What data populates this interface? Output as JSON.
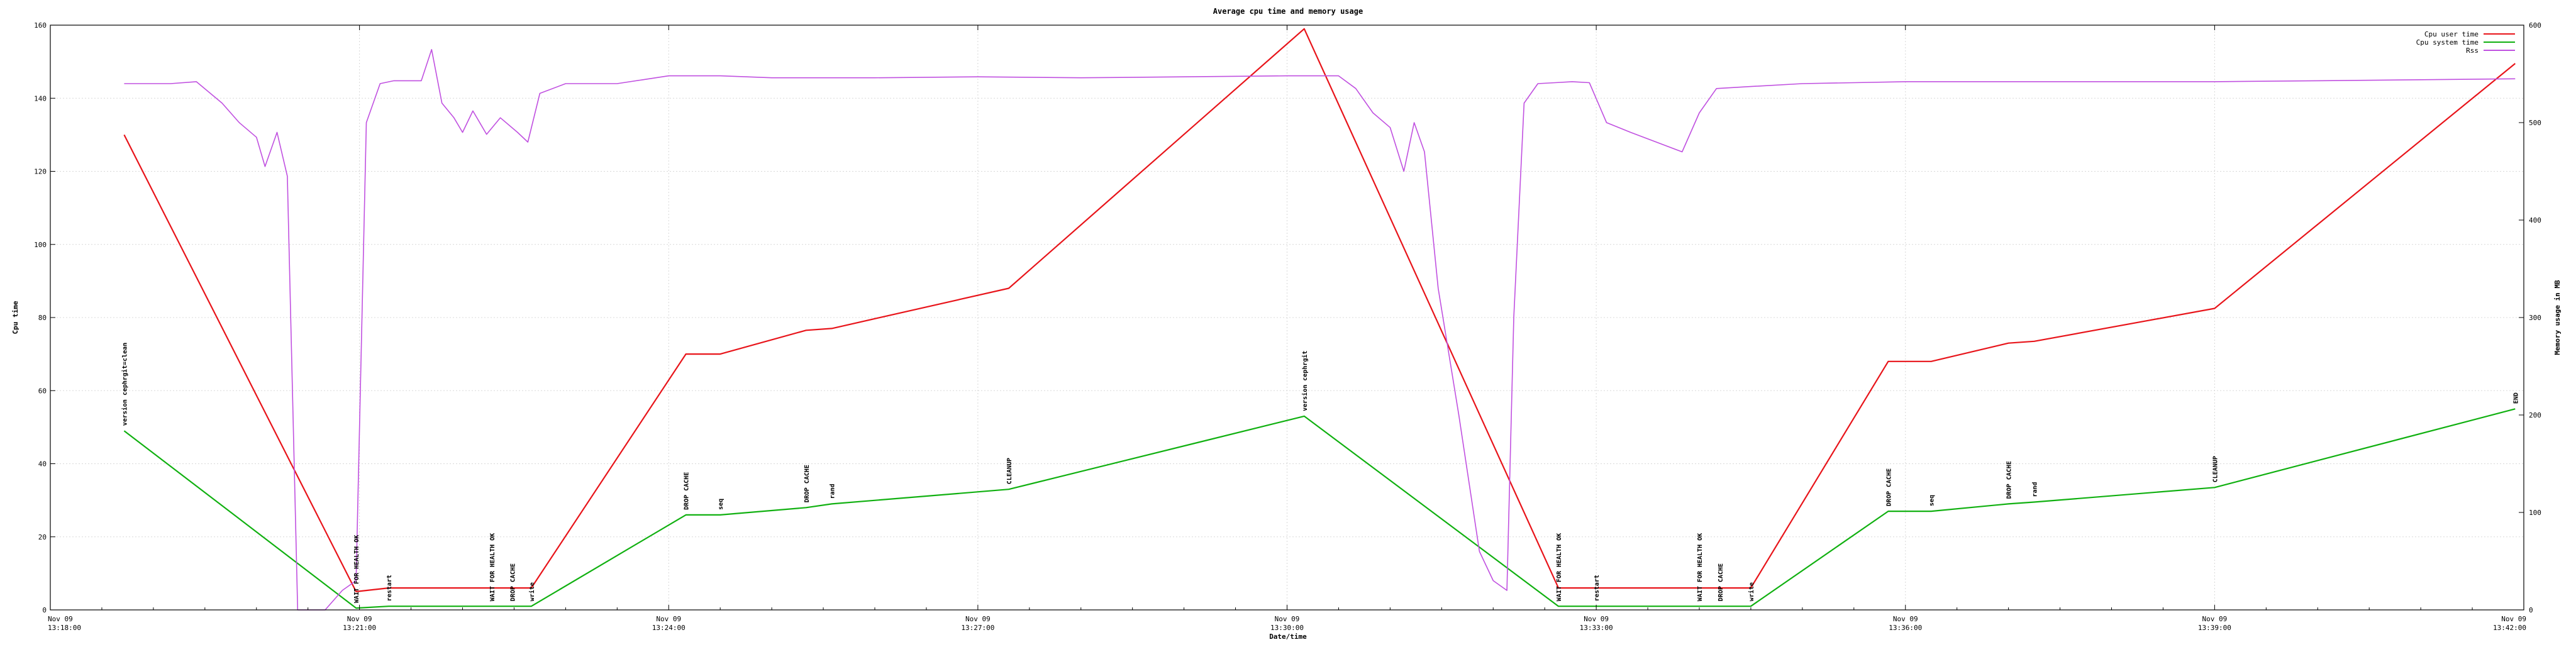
{
  "chart_data": {
    "type": "line",
    "title": "Average cpu time and memory usage",
    "xlabel": "Date/time",
    "ylabel": "Cpu time",
    "y2label": "Memory usage in MB",
    "xlim": [
      "13:18:00",
      "13:42:00"
    ],
    "ylim": [
      0,
      160
    ],
    "y2lim": [
      0,
      600
    ],
    "grid": true,
    "legend_position": "top-right",
    "x_ticks": [
      {
        "date": "Nov 09",
        "time": "13:18:00"
      },
      {
        "date": "Nov 09",
        "time": "13:21:00"
      },
      {
        "date": "Nov 09",
        "time": "13:24:00"
      },
      {
        "date": "Nov 09",
        "time": "13:27:00"
      },
      {
        "date": "Nov 09",
        "time": "13:30:00"
      },
      {
        "date": "Nov 09",
        "time": "13:33:00"
      },
      {
        "date": "Nov 09",
        "time": "13:36:00"
      },
      {
        "date": "Nov 09",
        "time": "13:39:00"
      },
      {
        "date": "Nov 09",
        "time": "13:42:00"
      }
    ],
    "y_ticks": [
      "0",
      "20",
      "40",
      "60",
      "80",
      "100",
      "120",
      "140",
      "160"
    ],
    "y2_ticks": [
      "0",
      "100",
      "200",
      "300",
      "400",
      "500",
      "600"
    ],
    "series": [
      {
        "name": "Cpu user time",
        "color": "#e8141a",
        "axis": "y",
        "points": [
          [
            "13:18:43",
            130
          ],
          [
            "13:20:58",
            5
          ],
          [
            "13:21:17",
            6
          ],
          [
            "13:22:40",
            6
          ],
          [
            "13:24:10",
            70
          ],
          [
            "13:24:30",
            70
          ],
          [
            "13:25:20",
            76.5
          ],
          [
            "13:25:35",
            77
          ],
          [
            "13:27:18",
            88
          ],
          [
            "13:30:10",
            159
          ],
          [
            "13:32:38",
            6
          ],
          [
            "13:33:00",
            6
          ],
          [
            "13:34:30",
            6
          ],
          [
            "13:35:50",
            68
          ],
          [
            "13:36:15",
            68
          ],
          [
            "13:37:00",
            73
          ],
          [
            "13:37:15",
            73.5
          ],
          [
            "13:39:00",
            82.5
          ],
          [
            "13:41:55",
            149.5
          ]
        ]
      },
      {
        "name": "Cpu system time",
        "color": "#10b010",
        "axis": "y",
        "points": [
          [
            "13:18:43",
            49
          ],
          [
            "13:20:58",
            0.5
          ],
          [
            "13:21:17",
            1
          ],
          [
            "13:22:40",
            1
          ],
          [
            "13:24:10",
            26
          ],
          [
            "13:24:30",
            26
          ],
          [
            "13:25:20",
            28
          ],
          [
            "13:25:35",
            29
          ],
          [
            "13:27:18",
            33
          ],
          [
            "13:30:10",
            53
          ],
          [
            "13:32:38",
            1
          ],
          [
            "13:33:00",
            1
          ],
          [
            "13:34:30",
            1
          ],
          [
            "13:35:50",
            27
          ],
          [
            "13:36:15",
            27
          ],
          [
            "13:37:00",
            29
          ],
          [
            "13:37:15",
            29.5
          ],
          [
            "13:39:00",
            33.5
          ],
          [
            "13:41:55",
            55
          ]
        ]
      },
      {
        "name": "Rss",
        "color": "#c050e0",
        "axis": "y2",
        "points": [
          [
            "13:18:43",
            540
          ],
          [
            "13:19:10",
            540
          ],
          [
            "13:19:25",
            542
          ],
          [
            "13:19:40",
            520
          ],
          [
            "13:19:50",
            500
          ],
          [
            "13:20:00",
            485
          ],
          [
            "13:20:05",
            455
          ],
          [
            "13:20:12",
            490
          ],
          [
            "13:20:18",
            445
          ],
          [
            "13:20:24",
            0
          ],
          [
            "13:20:40",
            0
          ],
          [
            "13:20:50",
            20
          ],
          [
            "13:20:58",
            30
          ],
          [
            "13:21:04",
            500
          ],
          [
            "13:21:12",
            540
          ],
          [
            "13:21:20",
            543
          ],
          [
            "13:21:36",
            543
          ],
          [
            "13:21:42",
            575
          ],
          [
            "13:21:48",
            520
          ],
          [
            "13:21:55",
            505
          ],
          [
            "13:22:00",
            490
          ],
          [
            "13:22:06",
            512
          ],
          [
            "13:22:14",
            488
          ],
          [
            "13:22:22",
            505
          ],
          [
            "13:22:32",
            490
          ],
          [
            "13:22:38",
            480
          ],
          [
            "13:22:45",
            530
          ],
          [
            "13:23:00",
            540
          ],
          [
            "13:23:30",
            540
          ],
          [
            "13:23:45",
            544
          ],
          [
            "13:24:00",
            548
          ],
          [
            "13:24:30",
            548
          ],
          [
            "13:25:00",
            546
          ],
          [
            "13:26:00",
            546
          ],
          [
            "13:27:00",
            547
          ],
          [
            "13:28:00",
            546
          ],
          [
            "13:29:00",
            547
          ],
          [
            "13:30:00",
            548
          ],
          [
            "13:30:30",
            548
          ],
          [
            "13:30:40",
            535
          ],
          [
            "13:30:50",
            510
          ],
          [
            "13:31:00",
            495
          ],
          [
            "13:31:08",
            450
          ],
          [
            "13:31:14",
            500
          ],
          [
            "13:31:20",
            470
          ],
          [
            "13:31:28",
            330
          ],
          [
            "13:31:40",
            200
          ],
          [
            "13:31:52",
            60
          ],
          [
            "13:32:00",
            30
          ],
          [
            "13:32:08",
            20
          ],
          [
            "13:32:12",
            300
          ],
          [
            "13:32:18",
            520
          ],
          [
            "13:32:26",
            540
          ],
          [
            "13:32:36",
            541
          ],
          [
            "13:32:46",
            542
          ],
          [
            "13:32:56",
            541
          ],
          [
            "13:33:06",
            500
          ],
          [
            "13:33:20",
            490
          ],
          [
            "13:33:35",
            480
          ],
          [
            "13:33:50",
            470
          ],
          [
            "13:34:00",
            510
          ],
          [
            "13:34:10",
            535
          ],
          [
            "13:34:30",
            537
          ],
          [
            "13:35:00",
            540
          ],
          [
            "13:35:30",
            541
          ],
          [
            "13:36:00",
            542
          ],
          [
            "13:37:00",
            542
          ],
          [
            "13:38:00",
            542
          ],
          [
            "13:39:00",
            542
          ],
          [
            "13:40:00",
            543
          ],
          [
            "13:41:00",
            544
          ],
          [
            "13:41:55",
            545
          ]
        ]
      }
    ],
    "annotations": [
      {
        "time": "13:18:43",
        "text": "version cephrgit=clean"
      },
      {
        "time": "13:20:58",
        "text": "WAIT FOR HEALTH OK"
      },
      {
        "time": "13:21:17",
        "text": "restart"
      },
      {
        "time": "13:22:17",
        "text": "WAIT FOR HEALTH OK"
      },
      {
        "time": "13:22:29",
        "text": "DROP CACHE"
      },
      {
        "time": "13:22:40",
        "text": "write"
      },
      {
        "time": "13:24:10",
        "text": "DROP CACHE"
      },
      {
        "time": "13:24:30",
        "text": "seq"
      },
      {
        "time": "13:25:20",
        "text": "DROP CACHE"
      },
      {
        "time": "13:25:35",
        "text": "rand"
      },
      {
        "time": "13:27:18",
        "text": "CLEANUP"
      },
      {
        "time": "13:30:10",
        "text": "version cephrgit"
      },
      {
        "time": "13:32:38",
        "text": "WAIT FOR HEALTH OK"
      },
      {
        "time": "13:33:00",
        "text": "restart"
      },
      {
        "time": "13:34:00",
        "text": "WAIT FOR HEALTH OK"
      },
      {
        "time": "13:34:12",
        "text": "DROP CACHE"
      },
      {
        "time": "13:34:30",
        "text": "write"
      },
      {
        "time": "13:35:50",
        "text": "DROP CACHE"
      },
      {
        "time": "13:36:15",
        "text": "seq"
      },
      {
        "time": "13:37:00",
        "text": "DROP CACHE"
      },
      {
        "time": "13:37:15",
        "text": "rand"
      },
      {
        "time": "13:39:00",
        "text": "CLEANUP"
      },
      {
        "time": "13:41:55",
        "text": "END"
      }
    ]
  }
}
